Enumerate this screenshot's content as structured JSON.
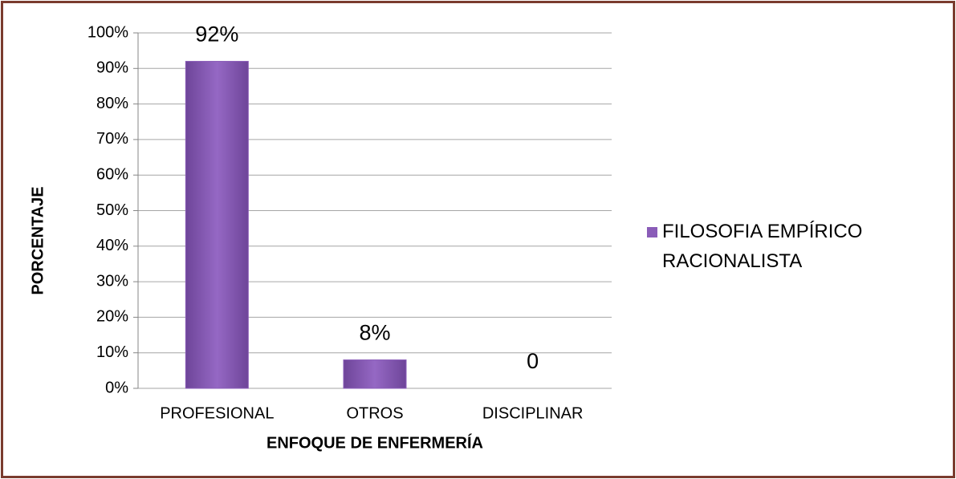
{
  "chart_data": {
    "type": "bar",
    "categories": [
      "PROFESIONAL",
      "OTROS",
      "DISCIPLINAR"
    ],
    "series": [
      {
        "name": "FILOSOFIA EMPÍRICO RACIONALISTA",
        "color": "#8a5cb8",
        "values": [
          92,
          8,
          0
        ],
        "value_labels": [
          "92%",
          "8%",
          "0"
        ]
      }
    ],
    "xlabel": "ENFOQUE DE ENFERMERÍA",
    "ylabel": "PORCENTAJE",
    "ylim": [
      0,
      100
    ],
    "yticks": [
      {
        "value": 0,
        "label": "0%"
      },
      {
        "value": 10,
        "label": "10%"
      },
      {
        "value": 20,
        "label": "20%"
      },
      {
        "value": 30,
        "label": "30%"
      },
      {
        "value": 40,
        "label": "40%"
      },
      {
        "value": 50,
        "label": "50%"
      },
      {
        "value": 60,
        "label": "60%"
      },
      {
        "value": 70,
        "label": "70%"
      },
      {
        "value": 80,
        "label": "80%"
      },
      {
        "value": 90,
        "label": "90%"
      },
      {
        "value": 100,
        "label": "100%"
      }
    ],
    "grid": true,
    "legend": "right"
  }
}
